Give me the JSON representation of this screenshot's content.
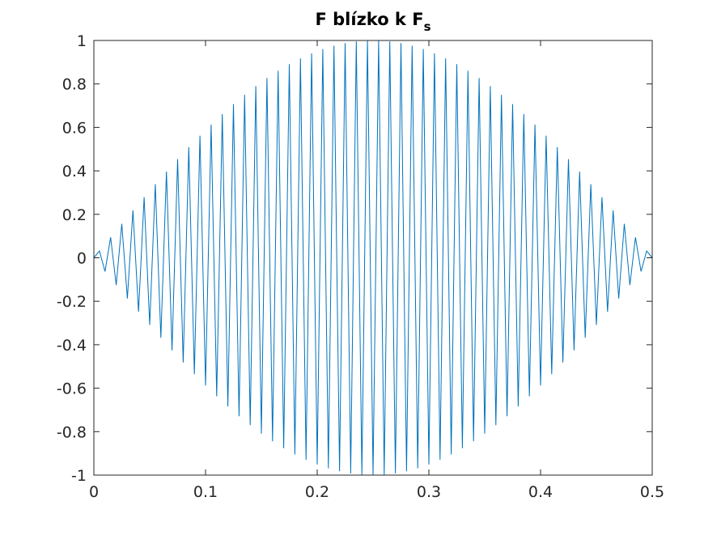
{
  "chart_data": {
    "type": "line",
    "title": {
      "main": "F blízko k F",
      "subscript": "s"
    },
    "xlabel": "",
    "ylabel": "",
    "xlim": [
      0,
      0.5
    ],
    "ylim": [
      -1,
      1
    ],
    "xticks": [
      0,
      0.1,
      0.2,
      0.3,
      0.4,
      0.5
    ],
    "xtick_labels": [
      "0",
      "0.1",
      "0.2",
      "0.3",
      "0.4",
      "0.5"
    ],
    "yticks": [
      -1,
      -0.8,
      -0.6,
      -0.4,
      -0.2,
      0,
      0.2,
      0.4,
      0.6,
      0.8,
      1
    ],
    "ytick_labels": [
      "-1",
      "-0.8",
      "-0.6",
      "-0.4",
      "-0.2",
      "0",
      "0.2",
      "0.4",
      "0.6",
      "0.8",
      "1"
    ],
    "grid": false,
    "line_color": "#0072BD",
    "series": [
      {
        "description_of_shape": "sampled sine whose envelope is |sin(2*pi*x)|, alternating sign every sample",
        "envelope_period": 1,
        "sample_step": 0.005,
        "x_start": 0,
        "x_end": 0.5,
        "color": "#0072BD"
      }
    ]
  }
}
